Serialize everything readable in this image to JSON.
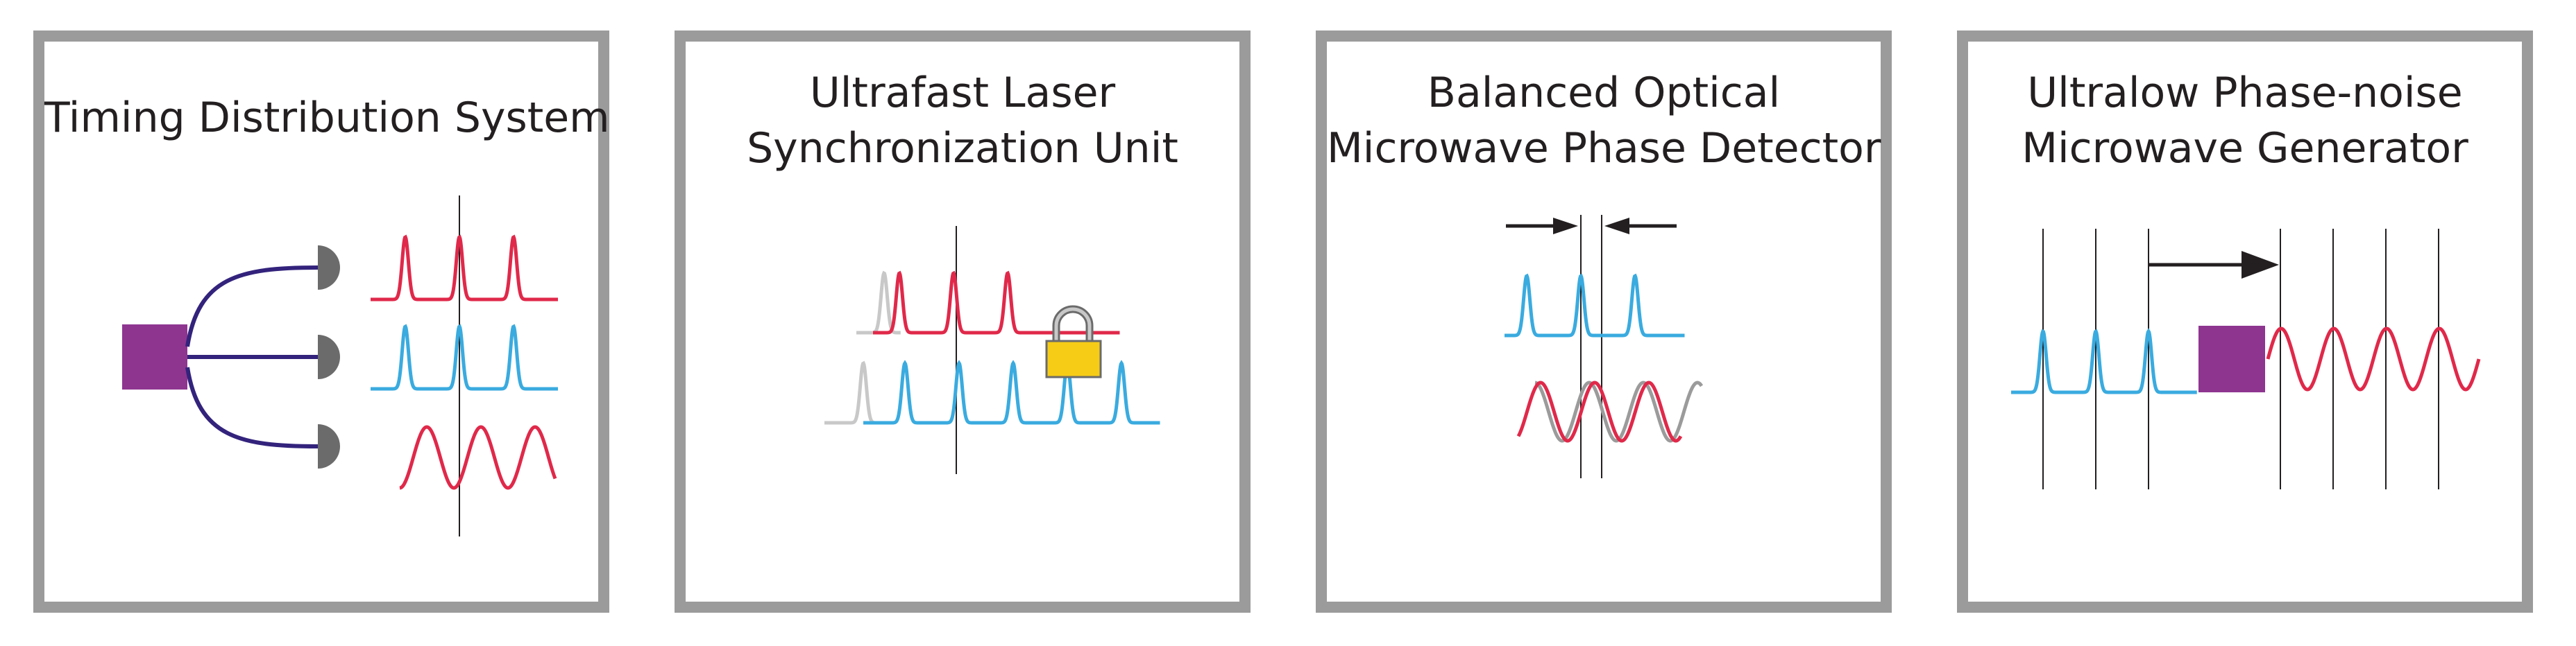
{
  "colors": {
    "red": "#e0294a",
    "blue": "#3aabdf",
    "gray_pulse": "#c8c8c8",
    "gray_sine": "#9b9b9b",
    "purple": "#8e3590",
    "navy": "#33237c",
    "detector_gray": "#6b6b6b",
    "lock_yellow": "#f6cc16",
    "frame_gray": "#9b9b9b",
    "black": "#231f20"
  },
  "panels": [
    {
      "title_lines": [
        "Timing Distribution System"
      ]
    },
    {
      "title_lines": [
        "Ultrafast Laser",
        "Synchronization Unit"
      ]
    },
    {
      "title_lines": [
        "Balanced Optical",
        "Microwave Phase Detector"
      ]
    },
    {
      "title_lines": [
        "Ultralow Phase-noise",
        "Microwave Generator"
      ]
    }
  ],
  "icons": [
    "fiber-splitter-icon",
    "photodetector-icon",
    "padlock-icon",
    "arrow-icon",
    "microwave-source-icon"
  ]
}
